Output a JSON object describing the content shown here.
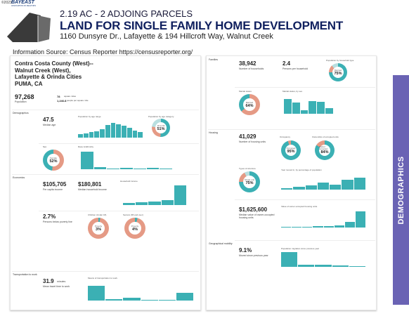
{
  "topbar": {
    "copyright": "©2023",
    "logo": "BAYEAST",
    "logo_sub": "ASSOCIATION OF REALTORS"
  },
  "header": {
    "subtitle": "2.19 AC - 2 ADJOING PARCELS",
    "title": "LAND FOR SINGLE FAMILY HOME DEVELOPMENT",
    "address": "1160 Dunsyre Dr., Lafayette  & 194 Hillcroft Way, Walnut Creek"
  },
  "info": {
    "label": "Information Source: Census Reporter  https://censusreporter.org/"
  },
  "left_panel": {
    "place_lines": [
      "Contra Costa County (West)--",
      "Walnut Creek (West),",
      "Lafayette & Orinda Cities",
      "PUMA, CA"
    ],
    "population": "97,268",
    "population_label": "Population",
    "area": "78",
    "area_label": "square miles",
    "density": "1,246.8",
    "density_label": "people per square mile",
    "sections": {
      "demographics": "Demographics",
      "economics": "Economics",
      "transportation": "Transportation to work"
    },
    "median_age": "47.5",
    "median_age_label": "Median age",
    "age_chart_title": "Population by age range",
    "age_category_title": "Population by age category",
    "age_donut": {
      "label": "18 to 64",
      "value": "51%"
    },
    "sex_label": "Sex",
    "sex_donut": {
      "label": "Female",
      "value": "52%"
    },
    "race_title": "Race & Ethnicity",
    "per_capita": "$105,705",
    "per_capita_label": "Per capita income",
    "median_household": "$180,801",
    "median_household_label": "Median household income",
    "household_income_title": "Household income",
    "poverty": "2.7%",
    "poverty_label": "Persons below poverty line",
    "children_title": "Children (Under 18)",
    "children_donut": {
      "label": "Poverty",
      "value": "3%"
    },
    "seniors_title": "Seniors (65 and over)",
    "seniors_donut": {
      "label": "Poverty",
      "value": "4%"
    },
    "travel_time": "31.9",
    "travel_time_unit": "minutes",
    "travel_time_label": "Mean travel time to work",
    "means_title": "Means of transportation to work"
  },
  "right_panel": {
    "families_label": "Families",
    "households": "38,942",
    "households_label": "Number of households",
    "persons_per_household": "2.4",
    "persons_per_household_label": "Persons per household",
    "hh_type_title": "Population by household type",
    "hh_donut": {
      "label": "Married",
      "value": "75%"
    },
    "marital_title": "Marital status",
    "marital_donut": {
      "label": "Married",
      "value": "64%"
    },
    "marital_sex_title": "Marital status, by sex",
    "housing_label": "Housing",
    "housing_units": "41,029",
    "housing_units_label": "Number of housing units",
    "occupancy_title": "Occupancy",
    "occupancy_donut": {
      "label": "Occupied",
      "value": "95%"
    },
    "ownership_title": "Ownership of occupied units",
    "ownership_donut": {
      "label": "Owner occupied",
      "value": "84%"
    },
    "structure_title": "Types of structure",
    "structure_donut": {
      "label": "Single unit",
      "value": "75%"
    },
    "year_built_title": "Year moved in, by percentage of population",
    "home_value": "$1,625,600",
    "home_value_label": "Median value of owner-occupied housing units",
    "value_dist_title": "Value of owner-occupied housing units",
    "mobility_label": "Geographical mobility",
    "moved": "9.1%",
    "moved_label": "Moved since previous year",
    "migration_title": "Population migration since previous year"
  },
  "sidebar": {
    "label": "DEMOGRAPHICS"
  },
  "colors": {
    "teal": "#3bb0b4",
    "salmon": "#e59a85",
    "navy": "#0f1f5e",
    "purple": "#6a63b4"
  }
}
